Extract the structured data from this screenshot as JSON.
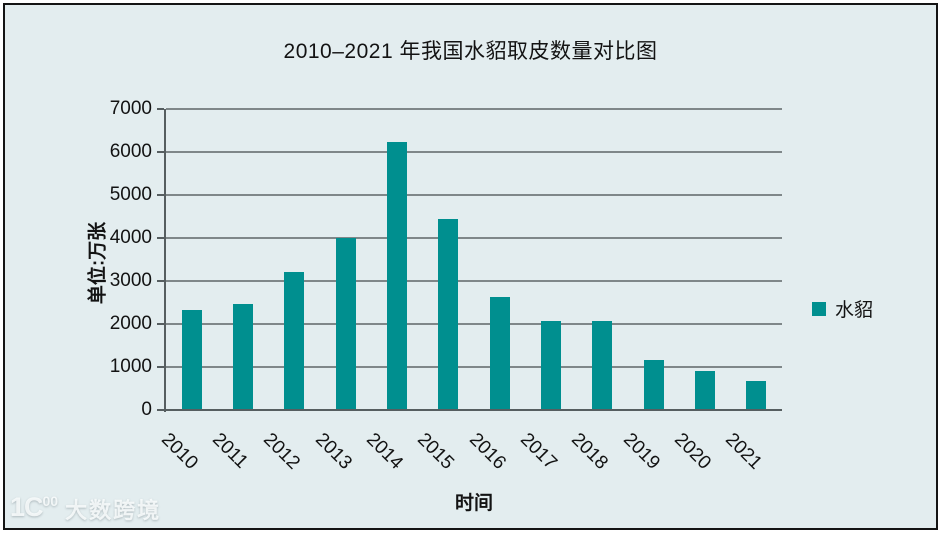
{
  "page": {
    "background": "#ffffff",
    "frame_background": "#e3edef",
    "border_color": "#141414",
    "gridline_color": "#7f8789",
    "axis_color": "#565e60",
    "text_color": "#131313"
  },
  "chart_data": {
    "type": "bar",
    "title": "2010–2021 年我国水貂取皮数量对比图",
    "xlabel": "时间",
    "ylabel": "单位:万张",
    "categories": [
      "2010",
      "2011",
      "2012",
      "2013",
      "2014",
      "2015",
      "2016",
      "2017",
      "2018",
      "2019",
      "2020",
      "2021"
    ],
    "series": [
      {
        "name": "水貂",
        "color": "#008f8f",
        "values": [
          2320,
          2470,
          3200,
          4000,
          6230,
          4440,
          2620,
          2060,
          2080,
          1170,
          911,
          670
        ]
      }
    ],
    "ylim": [
      0,
      7000
    ],
    "ytick_step": 1000,
    "yticks": [
      0,
      1000,
      2000,
      3000,
      4000,
      5000,
      6000,
      7000
    ],
    "grid": true,
    "legend_position": "right",
    "bar_color": "#008f8f"
  },
  "legend": {
    "label": "水貂"
  },
  "watermark": {
    "logo_main": "1C",
    "logo_sup": "00",
    "name": "大数跨境"
  }
}
